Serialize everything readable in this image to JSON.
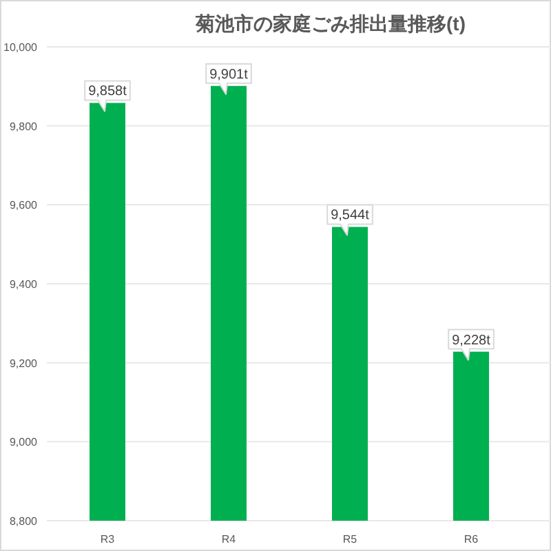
{
  "chart_data": {
    "type": "bar",
    "title": "菊池市の家庭ごみ排出量推移(t)",
    "categories": [
      "R3",
      "R4",
      "R5",
      "R6"
    ],
    "values": [
      9858,
      9901,
      9544,
      9228
    ],
    "color": "#00b050",
    "value_labels": [
      "9,858t",
      "9,901t",
      "9,544t",
      "9,228t"
    ],
    "ylim": [
      8800,
      10000
    ],
    "yticks": [
      {
        "value": 8800,
        "label": "8,800"
      },
      {
        "value": 9000,
        "label": "9,000"
      },
      {
        "value": 9200,
        "label": "9,200"
      },
      {
        "value": 9400,
        "label": "9,400"
      },
      {
        "value": 9600,
        "label": "9,600"
      },
      {
        "value": 9800,
        "label": "9,800"
      },
      {
        "value": 10000,
        "label": "10,000"
      }
    ],
    "grid": "y"
  }
}
